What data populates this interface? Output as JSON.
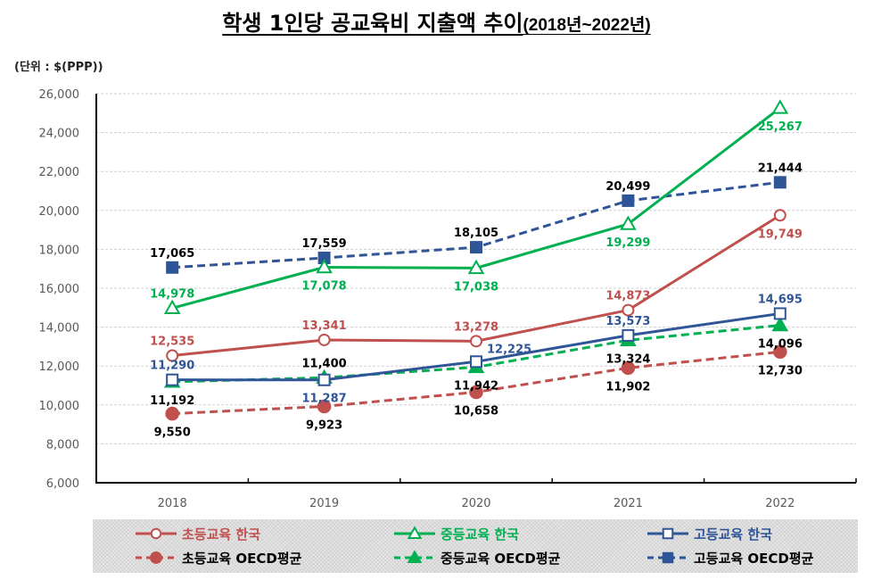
{
  "title": "학생 1인당 공교육비 지출액 추이",
  "title_suffix": "(2018년~2022년)",
  "unit_label": "(단위 : $(PPP))",
  "chart_data": {
    "type": "line",
    "title": "학생 1인당 공교육비 지출액 추이(2018년~2022년)",
    "xlabel": "",
    "ylabel": "(단위 : $(PPP))",
    "categories": [
      "2018",
      "2019",
      "2020",
      "2021",
      "2022"
    ],
    "ylim": [
      6000,
      26000
    ],
    "yticks": [
      6000,
      8000,
      10000,
      12000,
      14000,
      16000,
      18000,
      20000,
      22000,
      24000,
      26000
    ],
    "ytick_labels": [
      "6,000",
      "8,000",
      "10,000",
      "12,000",
      "14,000",
      "16,000",
      "18,000",
      "20,000",
      "22,000",
      "24,000",
      "26,000"
    ],
    "grid": true,
    "legend_position": "bottom",
    "series": [
      {
        "name": "초등교육 한국",
        "color": "#C0504D",
        "dash": "solid",
        "marker": "circle-open",
        "label_color": "#C0504D",
        "values": [
          12535,
          13341,
          13278,
          14873,
          19749
        ],
        "labels": [
          "12,535",
          "13,341",
          "13,278",
          "14,873",
          "19,749"
        ],
        "label_pos": [
          "above",
          "above",
          "above",
          "above",
          "below"
        ]
      },
      {
        "name": "중등교육 한국",
        "color": "#00B050",
        "dash": "solid",
        "marker": "triangle-open",
        "label_color": "#00B050",
        "values": [
          14978,
          17078,
          17038,
          19299,
          25267
        ],
        "labels": [
          "14,978",
          "17,078",
          "17,038",
          "19,299",
          "25,267"
        ],
        "label_pos": [
          "above",
          "below",
          "below",
          "below",
          "below"
        ]
      },
      {
        "name": "고등교육 한국",
        "color": "#2F5597",
        "dash": "solid",
        "marker": "square-open",
        "label_color": "#2F5597",
        "values": [
          11290,
          11287,
          12225,
          13573,
          14695
        ],
        "labels": [
          "11,290",
          "11,287",
          "12,225",
          "13,573",
          "14,695"
        ],
        "label_pos": [
          "above",
          "below",
          "above-right",
          "above",
          "above"
        ]
      },
      {
        "name": "초등교육 OECD평균",
        "color": "#C0504D",
        "dash": "dashed",
        "marker": "circle-filled",
        "label_color": "#000000",
        "values": [
          9550,
          9923,
          10658,
          11902,
          12730
        ],
        "labels": [
          "9,550",
          "9,923",
          "10,658",
          "11,902",
          "12,730"
        ],
        "label_pos": [
          "below",
          "below",
          "below",
          "below",
          "below"
        ]
      },
      {
        "name": "중등교육 OECD평균",
        "color": "#00B050",
        "dash": "dashed",
        "marker": "triangle-filled",
        "label_color": "#000000",
        "values": [
          11192,
          11400,
          11942,
          13324,
          14096
        ],
        "labels": [
          "11,192",
          "11,400",
          "11,942",
          "13,324",
          "14,096"
        ],
        "label_pos": [
          "below",
          "above",
          "below",
          "below",
          "below"
        ]
      },
      {
        "name": "고등교육 OECD평균",
        "color": "#2F5597",
        "dash": "dashed",
        "marker": "square-filled",
        "label_color": "#000000",
        "values": [
          17065,
          17559,
          18105,
          20499,
          21444
        ],
        "labels": [
          "17,065",
          "17,559",
          "18,105",
          "20,499",
          "21,444"
        ],
        "label_pos": [
          "above",
          "above",
          "above",
          "above",
          "above"
        ]
      }
    ]
  },
  "legend": {
    "items": [
      {
        "label": "초등교육 한국",
        "text_color": "#C0504D"
      },
      {
        "label": "중등교육 한국",
        "text_color": "#00B050"
      },
      {
        "label": "고등교육 한국",
        "text_color": "#2F5597"
      },
      {
        "label": "초등교육 OECD평균",
        "text_color": "#000000"
      },
      {
        "label": "중등교육 OECD평균",
        "text_color": "#000000"
      },
      {
        "label": "고등교육 OECD평균",
        "text_color": "#000000"
      }
    ]
  }
}
